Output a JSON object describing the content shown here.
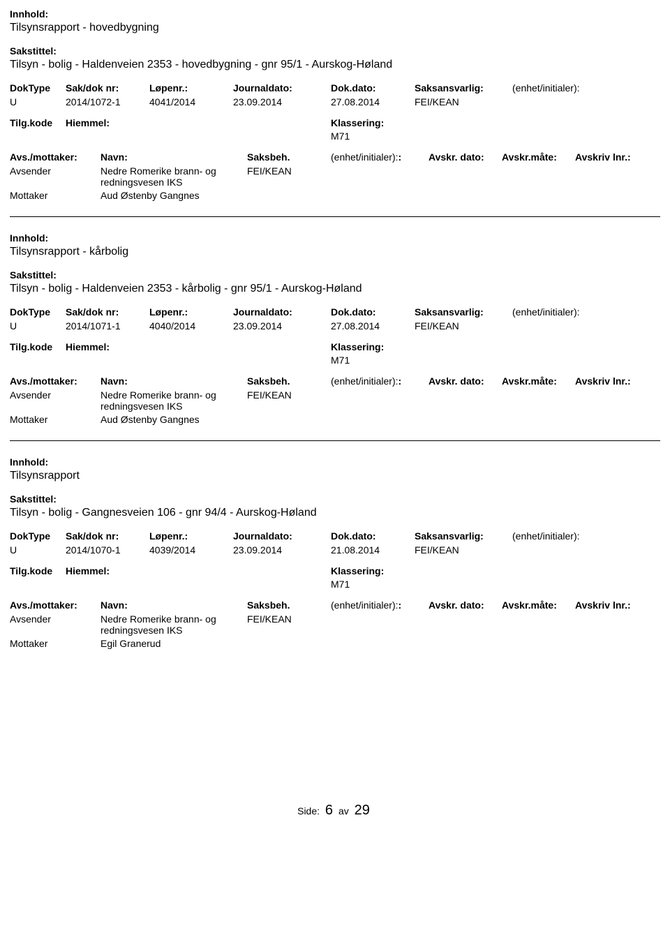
{
  "labels": {
    "innhold": "Innhold:",
    "sakstittel": "Sakstittel:",
    "doktype": "DokType",
    "sakdok": "Sak/dok nr:",
    "lopenr": "Løpenr.:",
    "journaldato": "Journaldato:",
    "dokdato": "Dok.dato:",
    "saksansvarlig": "Saksansvarlig:",
    "enhet": "(enhet/initialer):",
    "tilgkode": "Tilg.kode",
    "hiemmel": "Hiemmel:",
    "klassering": "Klassering:",
    "avsmottaker": "Avs./mottaker:",
    "navn": "Navn:",
    "saksbeh": "Saksbeh.",
    "enhetinit2": "(enhet/initialer):",
    "avskrdato": "Avskr. dato:",
    "avskrmate": "Avskr.måte:",
    "avskrivlnr": "Avskriv lnr.:",
    "avsender": "Avsender",
    "mottaker": "Mottaker"
  },
  "records": [
    {
      "innhold": "Tilsynsrapport - hovedbygning",
      "sakstittel": "Tilsyn - bolig - Haldenveien 2353 - hovedbygning - gnr 95/1 - Aurskog-Høland",
      "doktype": "U",
      "sakdok": "2014/1072-1",
      "lopenr": "4041/2014",
      "journaldato": "23.09.2014",
      "dokdato": "27.08.2014",
      "saksansvarlig": "FEI/KEAN",
      "klassering": "M71",
      "avsender_name": "Nedre Romerike brann- og redningsvesen IKS",
      "avsender_saksbeh": "FEI/KEAN",
      "mottaker_name": "Aud Østenby Gangnes"
    },
    {
      "innhold": "Tilsynsrapport - kårbolig",
      "sakstittel": "Tilsyn - bolig - Haldenveien 2353 - kårbolig - gnr 95/1 - Aurskog-Høland",
      "doktype": "U",
      "sakdok": "2014/1071-1",
      "lopenr": "4040/2014",
      "journaldato": "23.09.2014",
      "dokdato": "27.08.2014",
      "saksansvarlig": "FEI/KEAN",
      "klassering": "M71",
      "avsender_name": "Nedre Romerike brann- og redningsvesen IKS",
      "avsender_saksbeh": "FEI/KEAN",
      "mottaker_name": "Aud Østenby Gangnes"
    },
    {
      "innhold": "Tilsynsrapport",
      "sakstittel": "Tilsyn - bolig - Gangnesveien 106 - gnr 94/4 - Aurskog-Høland",
      "doktype": "U",
      "sakdok": "2014/1070-1",
      "lopenr": "4039/2014",
      "journaldato": "23.09.2014",
      "dokdato": "21.08.2014",
      "saksansvarlig": "FEI/KEAN",
      "klassering": "M71",
      "avsender_name": "Nedre Romerike brann- og redningsvesen IKS",
      "avsender_saksbeh": "FEI/KEAN",
      "mottaker_name": "Egil Granerud"
    }
  ],
  "footer": {
    "side_label": "Side:",
    "page": "6",
    "av": "av",
    "total": "29"
  }
}
